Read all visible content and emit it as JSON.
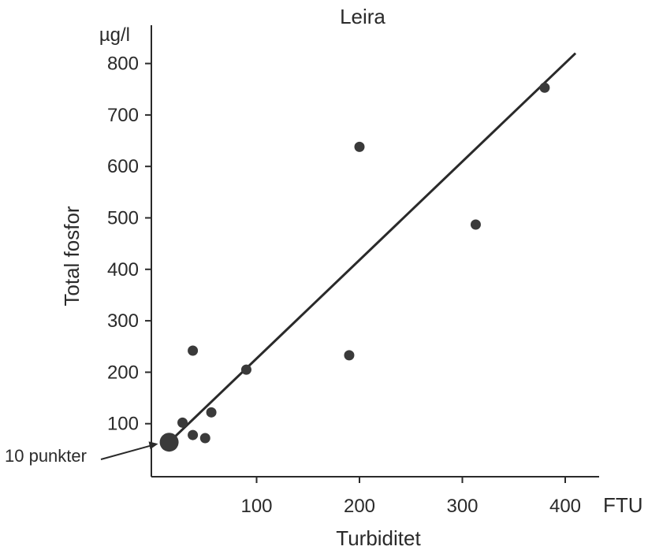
{
  "chart_data": {
    "type": "scatter",
    "title": "Leira",
    "xlabel": "Turbiditet",
    "x_unit": "FTU",
    "ylabel": "Total fosfor",
    "y_unit": "µg/l",
    "xlim": [
      0,
      420
    ],
    "ylim": [
      0,
      850
    ],
    "x_ticks": [
      100,
      200,
      300,
      400
    ],
    "y_ticks": [
      100,
      200,
      300,
      400,
      500,
      600,
      700,
      800
    ],
    "points": [
      {
        "x": 28,
        "y": 102
      },
      {
        "x": 38,
        "y": 242
      },
      {
        "x": 38,
        "y": 78
      },
      {
        "x": 50,
        "y": 72
      },
      {
        "x": 56,
        "y": 122
      },
      {
        "x": 90,
        "y": 205
      },
      {
        "x": 190,
        "y": 233
      },
      {
        "x": 200,
        "y": 638
      },
      {
        "x": 313,
        "y": 487
      },
      {
        "x": 380,
        "y": 753
      }
    ],
    "cluster": {
      "x": 15,
      "y": 64,
      "label": "10 punkter",
      "count": 10
    },
    "fit_line": {
      "x": [
        15,
        410
      ],
      "y": [
        64,
        820
      ]
    },
    "grid": false,
    "legend": "none"
  }
}
